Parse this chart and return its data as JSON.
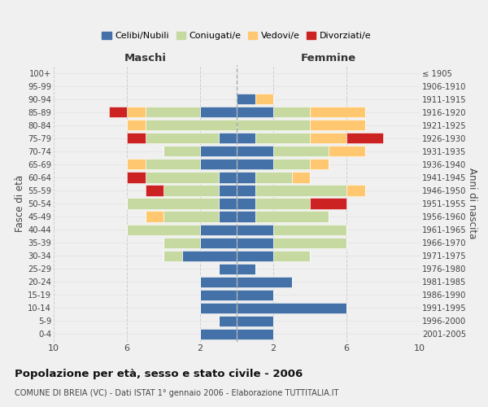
{
  "age_groups": [
    "0-4",
    "5-9",
    "10-14",
    "15-19",
    "20-24",
    "25-29",
    "30-34",
    "35-39",
    "40-44",
    "45-49",
    "50-54",
    "55-59",
    "60-64",
    "65-69",
    "70-74",
    "75-79",
    "80-84",
    "85-89",
    "90-94",
    "95-99",
    "100+"
  ],
  "birth_years": [
    "2001-2005",
    "1996-2000",
    "1991-1995",
    "1986-1990",
    "1981-1985",
    "1976-1980",
    "1971-1975",
    "1966-1970",
    "1961-1965",
    "1956-1960",
    "1951-1955",
    "1946-1950",
    "1941-1945",
    "1936-1940",
    "1931-1935",
    "1926-1930",
    "1921-1925",
    "1916-1920",
    "1911-1915",
    "1906-1910",
    "≤ 1905"
  ],
  "maschi": {
    "celibi": [
      2,
      1,
      2,
      2,
      2,
      1,
      3,
      2,
      2,
      1,
      1,
      1,
      1,
      2,
      2,
      1,
      0,
      2,
      0,
      0,
      0
    ],
    "coniugati": [
      0,
      0,
      0,
      0,
      0,
      0,
      1,
      2,
      4,
      3,
      5,
      3,
      4,
      3,
      2,
      4,
      5,
      3,
      0,
      0,
      0
    ],
    "vedovi": [
      0,
      0,
      0,
      0,
      0,
      0,
      0,
      0,
      0,
      1,
      0,
      0,
      0,
      1,
      0,
      0,
      1,
      1,
      0,
      0,
      0
    ],
    "divorziati": [
      0,
      0,
      0,
      0,
      0,
      0,
      0,
      0,
      0,
      0,
      0,
      1,
      1,
      0,
      0,
      1,
      0,
      1,
      0,
      0,
      0
    ]
  },
  "femmine": {
    "nubili": [
      2,
      2,
      6,
      2,
      3,
      1,
      2,
      2,
      2,
      1,
      1,
      1,
      1,
      2,
      2,
      1,
      0,
      2,
      1,
      0,
      0
    ],
    "coniugate": [
      0,
      0,
      0,
      0,
      0,
      0,
      2,
      4,
      4,
      4,
      3,
      5,
      2,
      2,
      3,
      3,
      4,
      2,
      0,
      0,
      0
    ],
    "vedove": [
      0,
      0,
      0,
      0,
      0,
      0,
      0,
      0,
      0,
      0,
      0,
      1,
      1,
      1,
      2,
      2,
      3,
      3,
      1,
      0,
      0
    ],
    "divorziate": [
      0,
      0,
      0,
      0,
      0,
      0,
      0,
      0,
      0,
      0,
      2,
      0,
      0,
      0,
      0,
      2,
      0,
      0,
      0,
      0,
      0
    ]
  },
  "colors": {
    "celibi": "#4472a8",
    "coniugati": "#c5d9a0",
    "vedovi": "#ffc870",
    "divorziati": "#cc2222"
  },
  "legend_labels": [
    "Celibi/Nubili",
    "Coniugati/e",
    "Vedovi/e",
    "Divorziati/e"
  ],
  "title": "Popolazione per età, sesso e stato civile - 2006",
  "subtitle": "COMUNE DI BREIA (VC) - Dati ISTAT 1° gennaio 2006 - Elaborazione TUTTITALIA.IT",
  "xlabel_left": "Maschi",
  "xlabel_right": "Femmine",
  "ylabel_left": "Fasce di età",
  "ylabel_right": "Anni di nascita",
  "xlim": 10,
  "xticks": [
    -10,
    -6,
    -2,
    2,
    6,
    10
  ],
  "bg_color": "#f0f0f0"
}
